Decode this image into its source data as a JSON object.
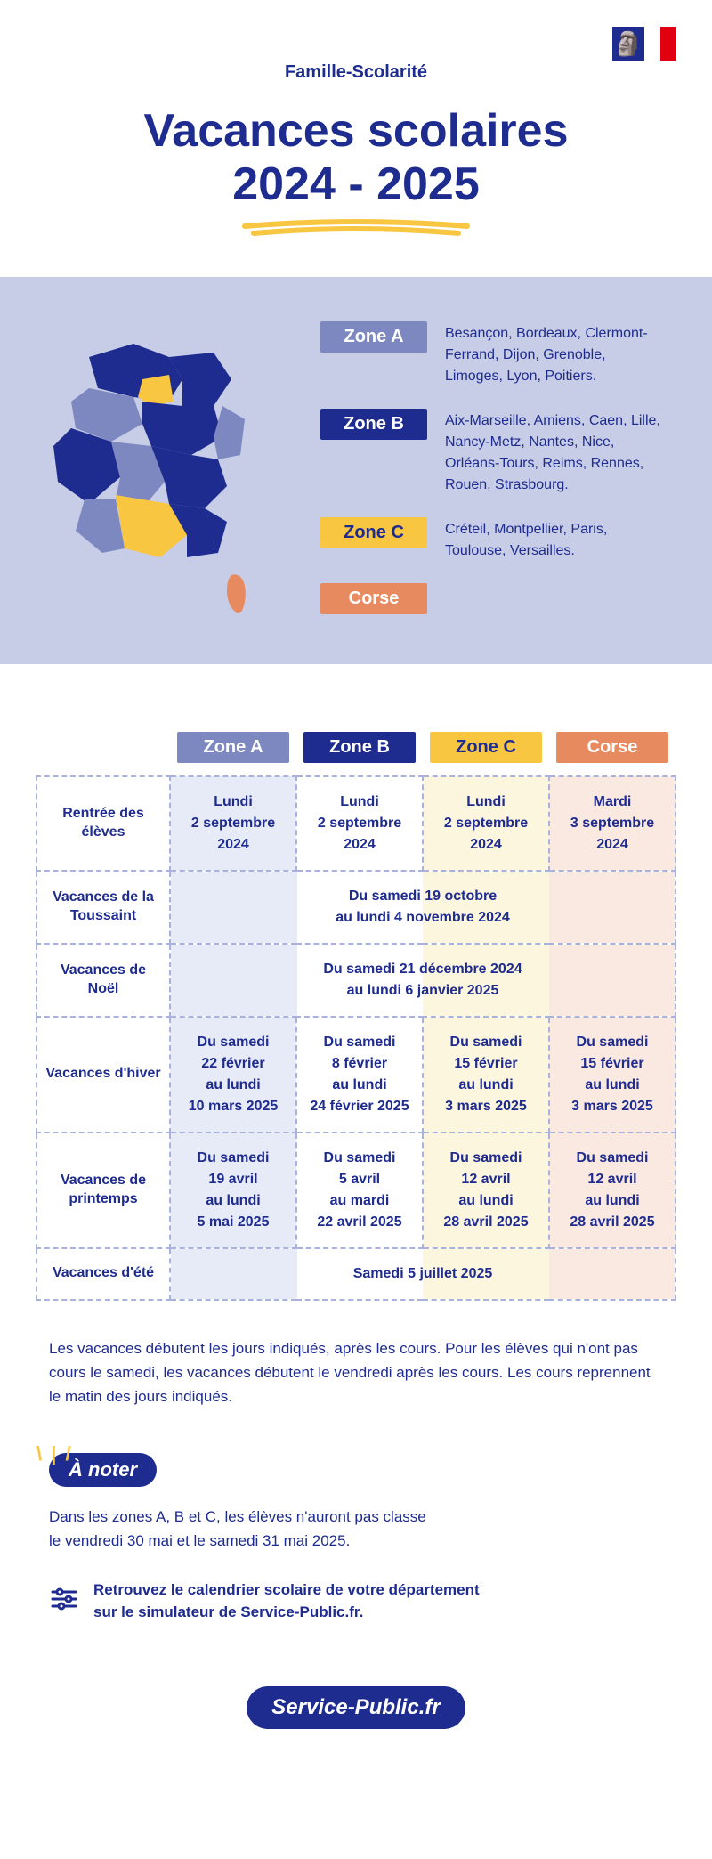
{
  "colors": {
    "navy": "#1e2b8f",
    "slate": "#7d88c0",
    "yellow": "#f9c642",
    "orange": "#e88a5f",
    "panel_bg": "#c7cde6",
    "zoneA_bg": "#e7ebf8",
    "zoneB_bg": "#ffffff",
    "zoneC_bg": "#fdf6de",
    "corse_bg": "#fae9e1",
    "dash_border": "#a9b2dd",
    "rowhead": "#7b86c4",
    "flag_red": "#e1000f"
  },
  "header": {
    "category": "Famille-Scolarité",
    "title_line1": "Vacances scolaires",
    "title_line2": "2024 - 2025"
  },
  "zones": {
    "a": {
      "label": "Zone A",
      "color": "#7d88c0",
      "cities": "Besançon, Bordeaux, Clermont-Ferrand, Dijon, Grenoble, Limoges, Lyon, Poitiers."
    },
    "b": {
      "label": "Zone B",
      "color": "#1e2b8f",
      "cities": "Aix-Marseille, Amiens, Caen, Lille, Nancy-Metz, Nantes, Nice, Orléans-Tours, Reims, Rennes, Rouen, Strasbourg."
    },
    "c": {
      "label": "Zone C",
      "color": "#f9c642",
      "cities": "Créteil, Montpellier, Paris, Toulouse, Versailles."
    },
    "corse": {
      "label": "Corse",
      "color": "#e88a5f",
      "cities": ""
    }
  },
  "calendar": {
    "columns": {
      "a": "Zone A",
      "b": "Zone B",
      "c": "Zone C",
      "corse": "Corse"
    },
    "rows": {
      "rentree": {
        "label": "Rentrée des élèves",
        "a": "Lundi\n2 septembre 2024",
        "b": "Lundi\n2 septembre 2024",
        "c": "Lundi\n2 septembre 2024",
        "corse": "Mardi\n3 septembre 2024"
      },
      "toussaint": {
        "label": "Vacances de la Toussaint",
        "merged": "Du samedi 19 octobre\nau lundi 4 novembre 2024"
      },
      "noel": {
        "label": "Vacances de Noël",
        "merged": "Du samedi 21 décembre 2024\nau lundi 6 janvier 2025"
      },
      "hiver": {
        "label": "Vacances d'hiver",
        "a": "Du samedi\n22 février\nau lundi\n10 mars 2025",
        "b": "Du samedi\n8 février\nau lundi\n24 février 2025",
        "c": "Du samedi\n15 février\nau lundi\n3 mars 2025",
        "corse": "Du samedi\n15 février\nau lundi\n3 mars 2025"
      },
      "printemps": {
        "label": "Vacances de printemps",
        "a": "Du samedi\n19 avril\nau lundi\n5 mai 2025",
        "b": "Du samedi\n5 avril\nau mardi\n22 avril 2025",
        "c": "Du samedi\n12 avril\nau lundi\n28 avril 2025",
        "corse": "Du samedi\n12 avril\nau lundi\n28 avril 2025"
      },
      "ete": {
        "label": "Vacances d'été",
        "merged": "Samedi 5 juillet 2025"
      }
    }
  },
  "footnote": "Les vacances débutent les jours indiqués, après les cours. Pour les élèves qui n'ont pas cours le samedi, les vacances débutent le vendredi après les cours. Les cours reprennent le matin des jours indiqués.",
  "note": {
    "badge": "À noter",
    "text": "Dans les zones A, B et C, les élèves n'auront pas classe\nle vendredi 30 mai et le samedi 31 mai 2025.",
    "tool": "Retrouvez le calendrier scolaire de votre département\nsur le simulateur de Service-Public.fr."
  },
  "footer": {
    "brand": "Service-Public.fr"
  }
}
